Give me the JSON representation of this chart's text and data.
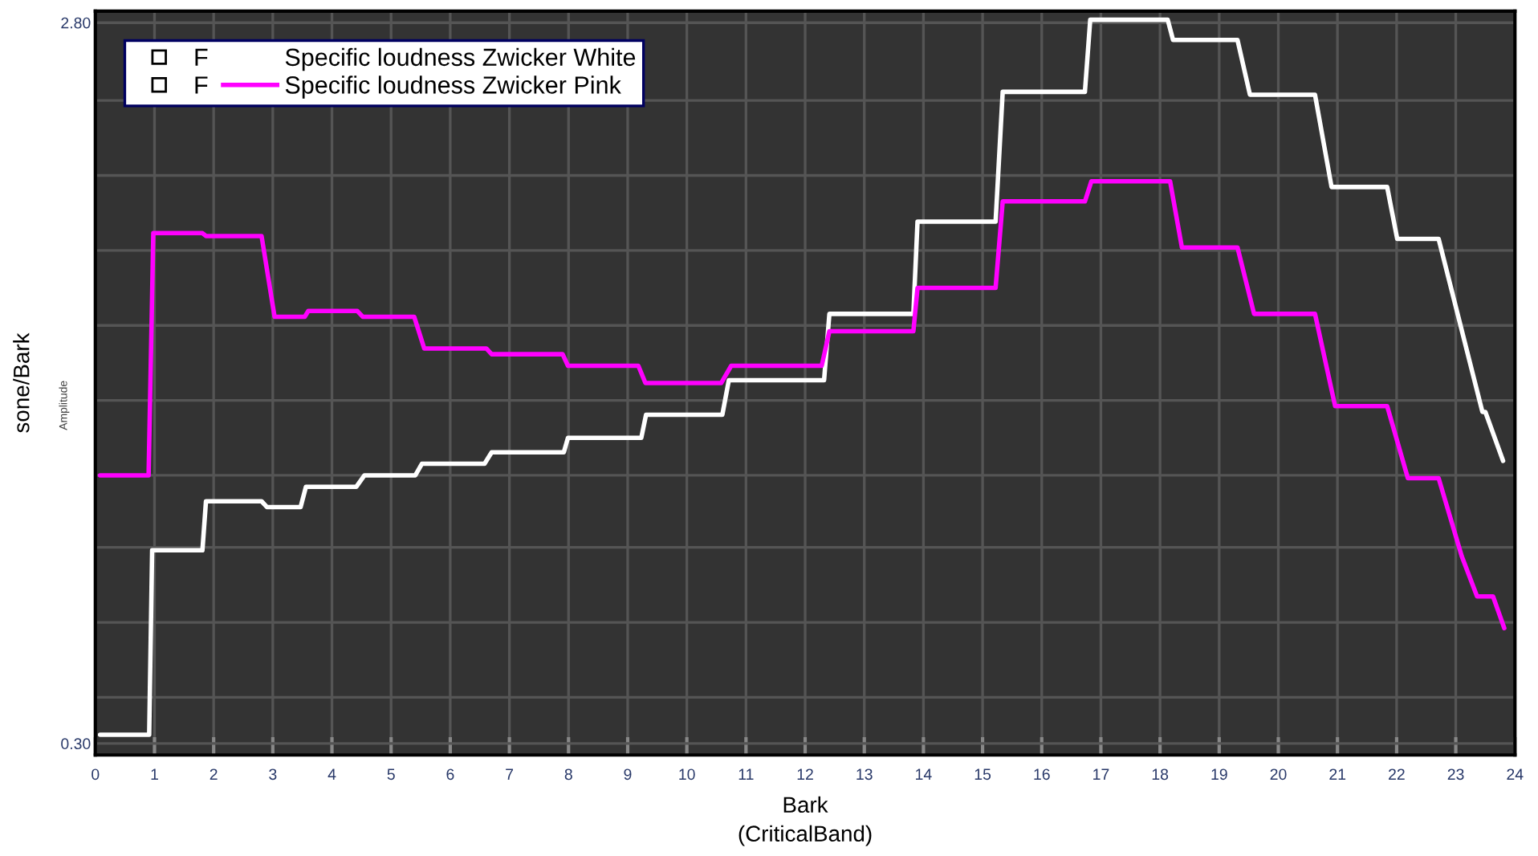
{
  "chart_data": {
    "type": "line",
    "xlabel": "Bark\n(CriticalBand)",
    "ylabel": "sone/Bark",
    "annotations": [
      "F",
      "F",
      "Amplitude"
    ],
    "xlim": [
      0,
      24
    ],
    "xticks": [
      0,
      1,
      2,
      3,
      4,
      5,
      6,
      7,
      8,
      9,
      10,
      11,
      12,
      13,
      14,
      15,
      16,
      17,
      18,
      19,
      20,
      21,
      22,
      23,
      24
    ],
    "ylim": [
      0.26,
      2.84
    ],
    "yticks": [
      {
        "value": 0.3,
        "label": "0.30"
      },
      {
        "value": 0.46,
        "label": null
      },
      {
        "value": 0.72,
        "label": null
      },
      {
        "value": 0.98,
        "label": null
      },
      {
        "value": 1.23,
        "label": null
      },
      {
        "value": 1.49,
        "label": null
      },
      {
        "value": 1.75,
        "label": null
      },
      {
        "value": 2.01,
        "label": null
      },
      {
        "value": 2.27,
        "label": null
      },
      {
        "value": 2.53,
        "label": null
      },
      {
        "value": 2.8,
        "label": "2.80"
      }
    ],
    "grid": true,
    "legend": "top left",
    "marker": "none",
    "line_style": "solid",
    "series": [
      {
        "name": "Specific loudness Zwicker White",
        "color": "#ffffff",
        "x": [
          0.08,
          0.91,
          0.96,
          1.81,
          1.87,
          2.81,
          2.9,
          3.47,
          3.56,
          4.41,
          4.55,
          5.41,
          5.52,
          6.58,
          6.7,
          7.92,
          7.99,
          9.23,
          9.31,
          10.6,
          10.71,
          12.32,
          12.41,
          13.83,
          13.9,
          15.22,
          15.34,
          16.73,
          16.82,
          18.13,
          18.22,
          19.31,
          19.52,
          20.62,
          20.9,
          21.84,
          22.01,
          22.71,
          23.45,
          23.5,
          23.8
        ],
        "values": [
          0.33,
          0.33,
          0.97,
          0.97,
          1.14,
          1.14,
          1.12,
          1.12,
          1.19,
          1.19,
          1.23,
          1.23,
          1.27,
          1.27,
          1.31,
          1.31,
          1.36,
          1.36,
          1.44,
          1.44,
          1.56,
          1.56,
          1.79,
          1.79,
          2.11,
          2.11,
          2.56,
          2.56,
          2.81,
          2.81,
          2.74,
          2.74,
          2.55,
          2.55,
          2.23,
          2.23,
          2.05,
          2.05,
          1.45,
          1.45,
          1.28
        ]
      },
      {
        "name": "Specific loudness Zwicker Pink",
        "color": "#ff00ff",
        "x": [
          0.08,
          0.9,
          0.98,
          1.81,
          1.87,
          2.81,
          3.03,
          3.54,
          3.6,
          4.43,
          4.52,
          5.39,
          5.56,
          6.61,
          6.7,
          7.9,
          7.99,
          9.18,
          9.3,
          10.58,
          10.75,
          12.28,
          12.41,
          13.83,
          13.9,
          15.22,
          15.34,
          16.73,
          16.84,
          18.17,
          18.37,
          19.31,
          19.59,
          20.62,
          20.96,
          21.84,
          22.19,
          22.71,
          23.1,
          23.36,
          23.63,
          23.82
        ],
        "values": [
          1.23,
          1.23,
          2.07,
          2.07,
          2.06,
          2.06,
          1.78,
          1.78,
          1.8,
          1.8,
          1.78,
          1.78,
          1.67,
          1.67,
          1.65,
          1.65,
          1.61,
          1.61,
          1.55,
          1.55,
          1.61,
          1.61,
          1.73,
          1.73,
          1.88,
          1.88,
          2.18,
          2.18,
          2.25,
          2.25,
          2.02,
          2.02,
          1.79,
          1.79,
          1.47,
          1.47,
          1.22,
          1.22,
          0.95,
          0.81,
          0.81,
          0.7
        ]
      }
    ]
  }
}
